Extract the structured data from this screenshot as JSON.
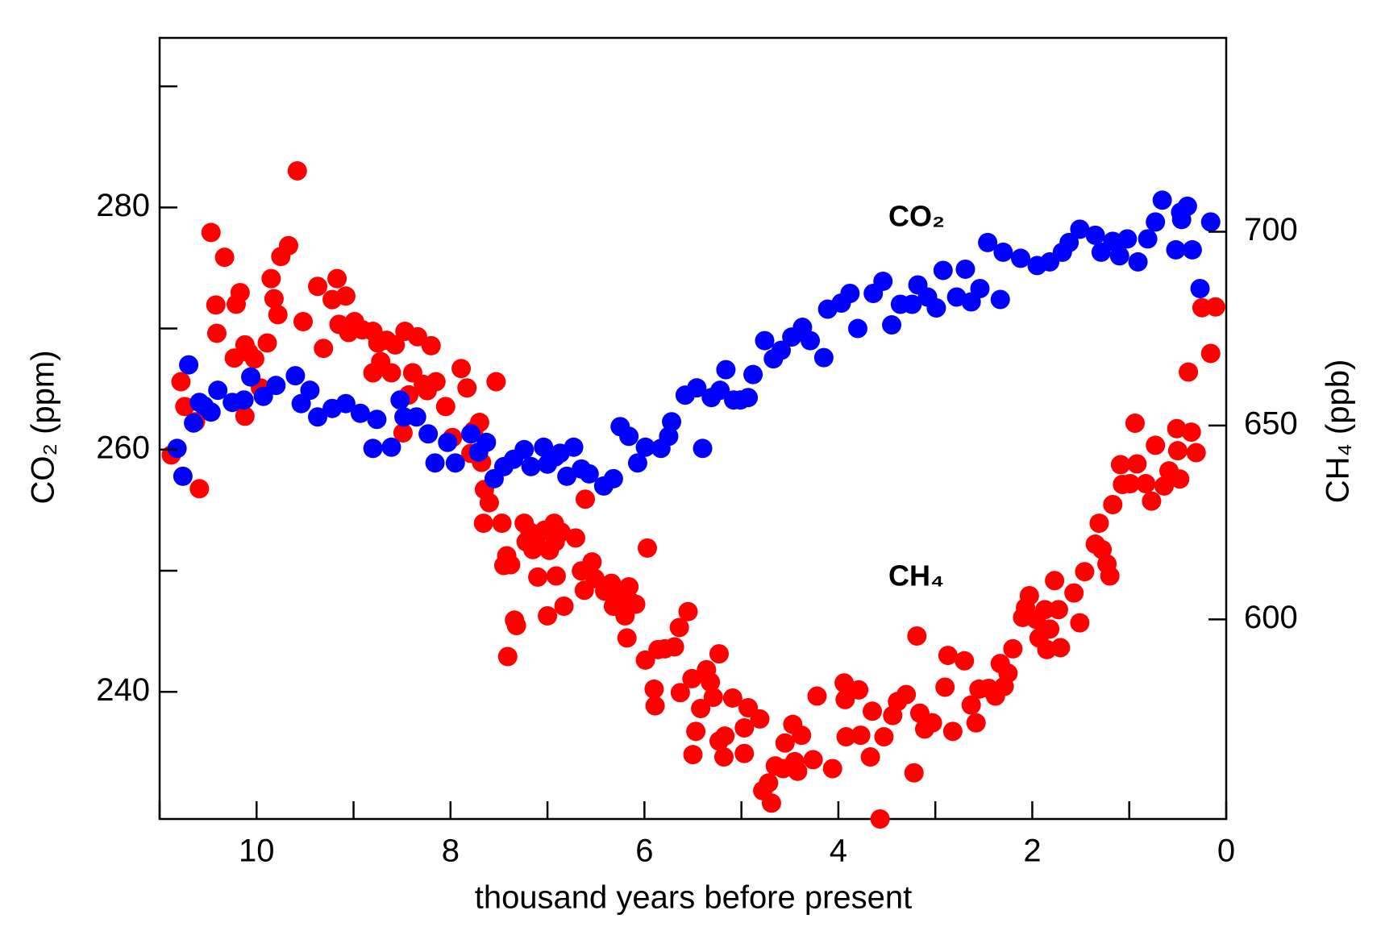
{
  "chart_data": {
    "type": "scatter",
    "xlabel": "thousand years before present",
    "ylabel": "CO₂ (ppm)",
    "y2label": "CH₄ (ppb)",
    "xlim": [
      11,
      0
    ],
    "xticks": [
      10,
      8,
      6,
      4,
      2,
      0
    ],
    "xticks_minor": [
      11,
      9,
      7,
      5,
      3,
      1
    ],
    "ylim": [
      229.5,
      294
    ],
    "yticks": [
      240,
      260,
      280
    ],
    "yticks_minor": [
      250,
      270,
      290
    ],
    "y2lim": [
      548.5,
      750
    ],
    "y2ticks": [
      600,
      650,
      700
    ],
    "series": [
      {
        "name": "CH₄",
        "color": "#ff0000",
        "axis": "y2",
        "x": [
          10.88,
          10.78,
          10.74,
          10.63,
          10.59,
          10.47,
          10.42,
          10.41,
          10.33,
          10.23,
          10.21,
          10.17,
          10.12,
          10.12,
          10.08,
          10.02,
          9.96,
          9.89,
          9.85,
          9.82,
          9.78,
          9.75,
          9.67,
          9.58,
          9.52,
          9.37,
          9.31,
          9.22,
          9.17,
          9.15,
          9.08,
          9.05,
          8.99,
          8.91,
          8.8,
          8.8,
          8.75,
          8.72,
          8.66,
          8.61,
          8.57,
          8.49,
          8.47,
          8.43,
          8.39,
          8.34,
          8.28,
          8.24,
          8.2,
          8.15,
          8.05,
          7.98,
          7.89,
          7.83,
          7.79,
          7.76,
          7.7,
          7.68,
          7.66,
          7.65,
          7.6,
          7.53,
          7.47,
          7.45,
          7.42,
          7.38,
          7.34,
          7.32,
          7.41,
          7.24,
          7.22,
          7.18,
          7.15,
          7.12,
          7.1,
          7.03,
          7.0,
          6.98,
          6.93,
          6.92,
          6.91,
          6.86,
          6.83,
          6.71,
          6.65,
          6.62,
          6.61,
          6.54,
          6.51,
          6.41,
          6.34,
          6.32,
          6.28,
          6.23,
          6.2,
          6.16,
          6.13,
          6.18,
          6.09,
          5.99,
          5.97,
          5.9,
          5.89,
          5.86,
          5.79,
          5.69,
          5.64,
          5.63,
          5.55,
          5.51,
          5.5,
          5.47,
          5.42,
          5.36,
          5.32,
          5.29,
          5.23,
          5.23,
          5.17,
          5.18,
          5.09,
          4.97,
          4.97,
          4.93,
          4.81,
          4.78,
          4.72,
          4.69,
          4.65,
          4.57,
          4.55,
          4.47,
          4.45,
          4.42,
          4.38,
          4.26,
          4.22,
          4.06,
          3.94,
          3.93,
          3.92,
          3.79,
          3.77,
          3.67,
          3.65,
          3.57,
          3.53,
          3.44,
          3.39,
          3.3,
          3.22,
          3.19,
          3.16,
          3.11,
          3.03,
          2.9,
          2.87,
          2.82,
          2.7,
          2.63,
          2.58,
          2.55,
          2.45,
          2.38,
          2.33,
          2.29,
          2.25,
          2.2,
          2.1,
          2.07,
          2.03,
          1.96,
          1.93,
          1.87,
          1.85,
          1.82,
          1.77,
          1.73,
          1.71,
          1.57,
          1.51,
          1.46,
          1.35,
          1.31,
          1.28,
          1.23,
          1.2,
          1.17,
          1.09,
          1.07,
          0.99,
          0.94,
          0.92,
          0.83,
          0.77,
          0.73,
          0.64,
          0.59,
          0.51,
          0.5,
          0.48,
          0.36,
          0.31,
          0.39,
          0.25,
          0.16,
          0.11
        ],
        "values": [
          642.4,
          661.3,
          654.9,
          651.0,
          633.7,
          699.8,
          681.1,
          673.8,
          693.4,
          667.4,
          681.3,
          684.3,
          652.4,
          670.8,
          668.8,
          667.2,
          659.7,
          671.3,
          687.9,
          682.7,
          678.6,
          693.6,
          696.4,
          715.7,
          676.8,
          685.9,
          669.9,
          682.5,
          687.9,
          676.1,
          683.4,
          674.0,
          676.8,
          674.7,
          674.3,
          663.6,
          671.3,
          666.5,
          672.0,
          663.6,
          670.8,
          648.1,
          674.3,
          657.9,
          663.6,
          672.9,
          660.6,
          659.0,
          670.6,
          661.3,
          654.9,
          646.9,
          664.7,
          659.7,
          642.8,
          648.7,
          650.8,
          640.5,
          624.8,
          633.5,
          630.1,
          661.3,
          624.8,
          613.9,
          616.4,
          614.1,
          599.8,
          598.4,
          590.4,
          624.8,
          620.0,
          622.5,
          618.0,
          620.0,
          610.9,
          623.0,
          600.9,
          617.8,
          624.8,
          620.0,
          611.2,
          622.5,
          603.4,
          621.0,
          612.5,
          607.5,
          631.0,
          614.8,
          610.5,
          607.3,
          609.3,
          603.4,
          606.6,
          605.5,
          600.9,
          608.4,
          604.3,
          595.2,
          603.9,
          589.5,
          618.4,
          582.0,
          577.7,
          592.2,
          592.4,
          592.9,
          597.9,
          581.1,
          602.0,
          584.7,
          565.1,
          571.1,
          577.0,
          587.0,
          583.8,
          579.9,
          591.1,
          568.6,
          569.9,
          564.5,
          579.7,
          572.0,
          565.4,
          577.2,
          574.3,
          555.8,
          557.8,
          552.6,
          562.2,
          561.5,
          568.1,
          572.9,
          563.3,
          560.8,
          570.1,
          563.8,
          580.2,
          561.5,
          583.6,
          579.3,
          569.7,
          581.8,
          570.1,
          564.5,
          576.3,
          548.5,
          569.7,
          575.2,
          578.8,
          580.6,
          560.4,
          595.7,
          575.8,
          571.7,
          573.3,
          582.5,
          590.7,
          571.1,
          589.3,
          577.9,
          573.3,
          582.0,
          582.2,
          580.2,
          588.6,
          582.7,
          586.1,
          592.4,
          600.5,
          603.0,
          606.1,
          600.0,
          595.2,
          602.5,
          592.2,
          597.5,
          610.0,
          602.5,
          592.7,
          606.8,
          599.1,
          612.3,
          619.4,
          624.8,
          618.0,
          614.3,
          611.2,
          629.6,
          639.9,
          634.8,
          635.0,
          650.6,
          640.1,
          635.0,
          630.5,
          644.9,
          634.4,
          638.3,
          649.2,
          643.5,
          636.2,
          648.3,
          643.0,
          663.8,
          680.4,
          668.6,
          680.6
        ]
      },
      {
        "name": "CO₂",
        "color": "#0000ff",
        "axis": "y",
        "x": [
          10.82,
          10.76,
          10.7,
          10.65,
          10.59,
          10.54,
          10.47,
          10.4,
          10.25,
          10.13,
          10.06,
          9.93,
          9.8,
          9.6,
          9.54,
          9.45,
          9.37,
          9.22,
          9.08,
          8.93,
          8.8,
          8.76,
          8.61,
          8.52,
          8.48,
          8.35,
          8.23,
          8.16,
          8.03,
          7.95,
          7.79,
          7.71,
          7.63,
          7.55,
          7.45,
          7.35,
          7.24,
          7.17,
          7.04,
          7.0,
          6.92,
          6.87,
          6.73,
          6.8,
          6.65,
          6.57,
          6.42,
          6.32,
          6.25,
          6.16,
          6.07,
          5.99,
          5.83,
          5.75,
          5.72,
          5.58,
          5.46,
          5.4,
          5.31,
          5.22,
          5.16,
          5.08,
          5.01,
          4.93,
          4.88,
          4.76,
          4.67,
          4.59,
          4.48,
          4.37,
          4.29,
          4.15,
          4.11,
          3.97,
          3.88,
          3.8,
          3.64,
          3.54,
          3.45,
          3.36,
          3.24,
          3.18,
          3.08,
          2.99,
          2.92,
          2.78,
          2.69,
          2.63,
          2.54,
          2.33,
          2.46,
          2.3,
          2.12,
          1.95,
          1.82,
          1.69,
          1.62,
          1.51,
          1.35,
          1.29,
          1.17,
          1.1,
          1.02,
          0.91,
          0.81,
          0.73,
          0.66,
          0.47,
          0.4,
          0.46,
          0.52,
          0.35,
          0.27,
          0.16
        ],
        "values": [
          260.1,
          257.8,
          267.0,
          262.2,
          263.9,
          263.6,
          263.1,
          264.9,
          263.9,
          264.1,
          266.0,
          264.4,
          265.3,
          266.1,
          263.8,
          264.9,
          262.7,
          263.4,
          263.8,
          263.0,
          260.1,
          262.5,
          260.2,
          264.1,
          262.7,
          262.7,
          261.3,
          258.9,
          260.6,
          258.9,
          261.3,
          259.8,
          260.6,
          257.6,
          258.6,
          259.2,
          260.0,
          258.6,
          260.2,
          258.8,
          259.4,
          259.7,
          260.2,
          257.8,
          258.4,
          258.0,
          257.0,
          257.6,
          261.9,
          261.1,
          258.9,
          260.2,
          260.1,
          261.1,
          262.3,
          264.5,
          265.1,
          260.1,
          264.3,
          264.9,
          266.6,
          264.1,
          264.1,
          264.3,
          266.2,
          269.0,
          267.5,
          268.2,
          269.3,
          270.1,
          269.0,
          267.6,
          271.6,
          272.1,
          272.9,
          270.0,
          272.9,
          273.9,
          270.3,
          272.0,
          272.0,
          273.6,
          272.6,
          271.7,
          274.8,
          272.6,
          274.9,
          272.2,
          273.3,
          272.4,
          277.1,
          276.3,
          275.8,
          275.2,
          275.5,
          276.3,
          277.1,
          278.2,
          277.7,
          276.3,
          277.2,
          276.0,
          277.4,
          275.5,
          277.4,
          278.8,
          280.6,
          279.6,
          280.1,
          279.0,
          276.5,
          276.5,
          273.3,
          278.8
        ]
      }
    ]
  }
}
